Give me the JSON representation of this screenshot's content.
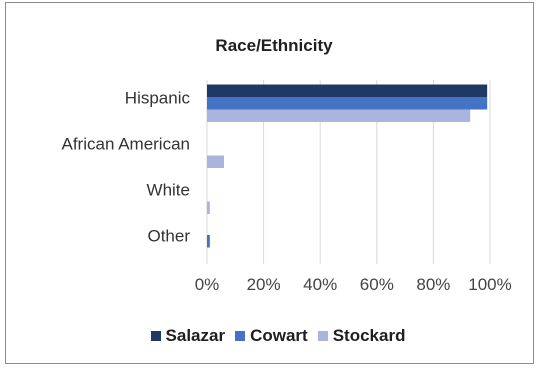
{
  "chart_data": {
    "type": "bar",
    "orientation": "horizontal",
    "title": "Race/Ethnicity",
    "categories": [
      "Hispanic",
      "African American",
      "White",
      "Other"
    ],
    "series": [
      {
        "name": "Salazar",
        "color": "#203864",
        "values": [
          99,
          0,
          0,
          0
        ]
      },
      {
        "name": "Cowart",
        "color": "#4472c4",
        "values": [
          99,
          0,
          0,
          1
        ]
      },
      {
        "name": "Stockard",
        "color": "#a9b5de",
        "values": [
          93,
          6,
          1,
          0
        ]
      }
    ],
    "xlim": [
      0,
      100
    ],
    "x_ticks": [
      "0%",
      "20%",
      "40%",
      "60%",
      "80%",
      "100%"
    ],
    "grid": true,
    "legend_position": "bottom"
  }
}
